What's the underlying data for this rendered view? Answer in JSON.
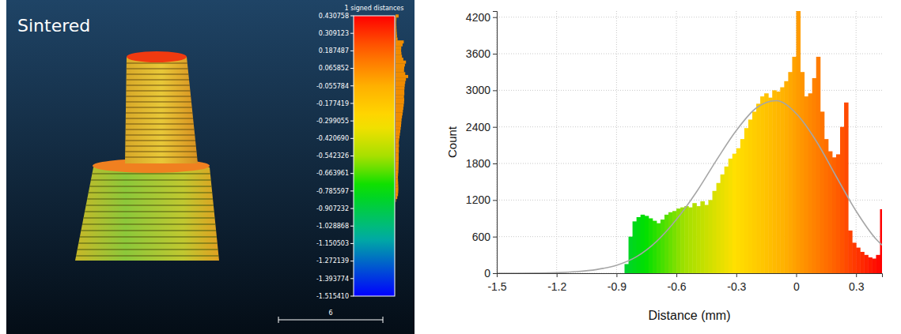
{
  "chart_data": [
    {
      "type": "colorbar",
      "title": "Sintered",
      "colorbar_title": "1 signed distances",
      "clim": [
        -1.51541,
        0.430758
      ],
      "cticks": [
        {
          "value": 0.430758,
          "label": "0.430758"
        },
        {
          "value": 0.309123,
          "label": "0.309123"
        },
        {
          "value": 0.187487,
          "label": "0.187487"
        },
        {
          "value": 0.065852,
          "label": "0.065852"
        },
        {
          "value": -0.055784,
          "label": "-0.055784"
        },
        {
          "value": -0.177419,
          "label": "-0.177419"
        },
        {
          "value": -0.299055,
          "label": "-0.299055"
        },
        {
          "value": -0.42069,
          "label": "-0.420690"
        },
        {
          "value": -0.542326,
          "label": "-0.542326"
        },
        {
          "value": -0.663961,
          "label": "-0.663961"
        },
        {
          "value": -0.785597,
          "label": "-0.785597"
        },
        {
          "value": -0.907232,
          "label": "-0.907232"
        },
        {
          "value": -1.028868,
          "label": "-1.028868"
        },
        {
          "value": -1.150503,
          "label": "-1.150503"
        },
        {
          "value": -1.272139,
          "label": "-1.272139"
        },
        {
          "value": -1.393774,
          "label": "-1.393774"
        },
        {
          "value": -1.51541,
          "label": "-1.515410"
        }
      ],
      "scale_bar": 6
    },
    {
      "type": "histogram",
      "xlabel": "Distance (mm)",
      "ylabel": "Count",
      "bins": [
        -0.86,
        -0.84,
        -0.82,
        -0.8,
        -0.78,
        -0.76,
        -0.74,
        -0.72,
        -0.7,
        -0.68,
        -0.66,
        -0.64,
        -0.62,
        -0.6,
        -0.58,
        -0.56,
        -0.54,
        -0.52,
        -0.5,
        -0.48,
        -0.46,
        -0.44,
        -0.42,
        -0.4,
        -0.38,
        -0.36,
        -0.34,
        -0.32,
        -0.3,
        -0.28,
        -0.26,
        -0.24,
        -0.22,
        -0.2,
        -0.18,
        -0.16,
        -0.14,
        -0.12,
        -0.1,
        -0.08,
        -0.06,
        -0.04,
        -0.02,
        0,
        0.02,
        0.04,
        0.06,
        0.08,
        0.1,
        0.12,
        0.14,
        0.16,
        0.18,
        0.2,
        0.22,
        0.24,
        0.26,
        0.28,
        0.3,
        0.32,
        0.34,
        0.36,
        0.38,
        0.4,
        0.42,
        0.44
      ],
      "values": [
        150,
        600,
        850,
        920,
        960,
        940,
        900,
        860,
        820,
        880,
        960,
        1000,
        1020,
        1060,
        1080,
        1100,
        1080,
        1150,
        1100,
        1180,
        1120,
        1200,
        1350,
        1480,
        1620,
        1750,
        1880,
        1960,
        2050,
        2200,
        2380,
        2520,
        2650,
        2780,
        2900,
        2950,
        2880,
        3000,
        2980,
        3050,
        3150,
        3300,
        3550,
        4300,
        3300,
        2900,
        2950,
        3200,
        3550,
        2650,
        2200,
        2000,
        1900,
        1950,
        2400,
        2800,
        700,
        500,
        420,
        350,
        300,
        260,
        240,
        300,
        1050
      ],
      "xlim": [
        -1.5,
        0.43
      ],
      "ylim": [
        0,
        4300
      ],
      "xticks": [
        -1.5,
        -1.2,
        -0.9,
        -0.6,
        -0.3,
        0,
        0.3
      ],
      "yticks": [
        0,
        600,
        1200,
        1800,
        2400,
        3000,
        3600,
        4200
      ],
      "grid": true,
      "series": [
        {
          "type": "line",
          "color": "#a6a6a6",
          "x": [
            -1.5,
            -1.4,
            -1.3,
            -1.2,
            -1.1,
            -1.0,
            -0.9,
            -0.8,
            -0.7,
            -0.6,
            -0.5,
            -0.4,
            -0.3,
            -0.2,
            -0.1,
            0,
            0.1,
            0.2,
            0.3,
            0.4,
            0.43
          ],
          "values": [
            0,
            0,
            2,
            8,
            25,
            60,
            130,
            270,
            520,
            880,
            1330,
            1850,
            2340,
            2710,
            2830,
            2620,
            2170,
            1590,
            1020,
            560,
            460
          ]
        }
      ]
    }
  ]
}
